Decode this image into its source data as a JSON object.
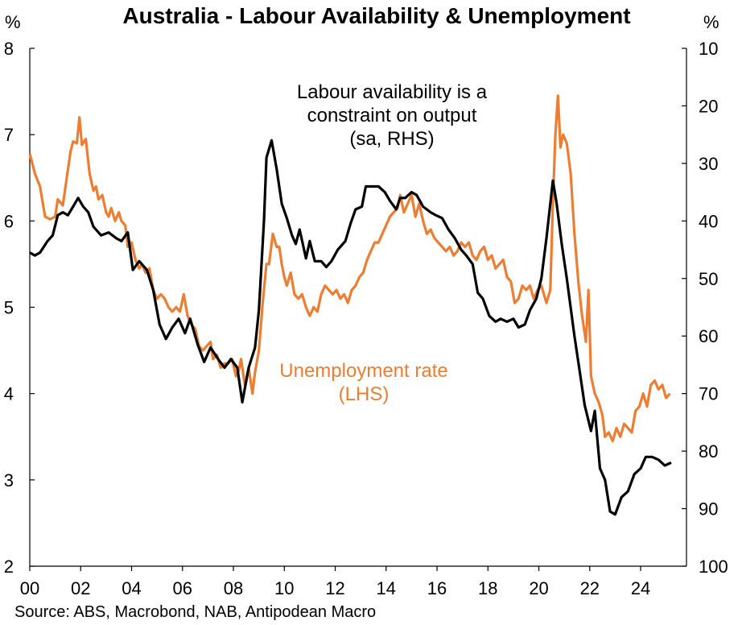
{
  "chart_data": {
    "type": "line",
    "title": "Australia - Labour Availability & Unemployment",
    "source": "Source: ABS, Macrobond, NAB, Antipodean Macro",
    "left_axis": {
      "unit": "%",
      "range": [
        2,
        8
      ],
      "ticks": [
        "2",
        "3",
        "4",
        "5",
        "6",
        "7",
        "8"
      ]
    },
    "right_axis": {
      "unit": "%",
      "range": [
        10,
        100
      ],
      "inverted": true,
      "ticks": [
        "10",
        "20",
        "30",
        "40",
        "50",
        "60",
        "70",
        "80",
        "90",
        "100"
      ]
    },
    "x_axis": {
      "range": [
        2000,
        2025.8
      ],
      "ticks": [
        "00",
        "02",
        "04",
        "06",
        "08",
        "10",
        "12",
        "14",
        "16",
        "18",
        "20",
        "22",
        "24"
      ]
    },
    "grid": false,
    "annotations": {
      "labour": [
        "Labour availability is a",
        "constraint on output",
        "(sa, RHS)"
      ],
      "unemployment": [
        "Unemployment rate",
        "(LHS)"
      ]
    },
    "colors": {
      "labour": "#000000",
      "unemployment": "#ED7D31"
    },
    "series": [
      {
        "axis": "left",
        "points": [
          [
            2000.0,
            6.78
          ],
          [
            2000.2,
            6.55
          ],
          [
            2000.4,
            6.4
          ],
          [
            2000.6,
            6.05
          ],
          [
            2000.8,
            6.02
          ],
          [
            2001.0,
            6.05
          ],
          [
            2001.1,
            6.25
          ],
          [
            2001.3,
            6.18
          ],
          [
            2001.45,
            6.5
          ],
          [
            2001.6,
            6.8
          ],
          [
            2001.7,
            6.92
          ],
          [
            2001.85,
            6.9
          ],
          [
            2001.95,
            7.2
          ],
          [
            2002.05,
            6.88
          ],
          [
            2002.2,
            6.95
          ],
          [
            2002.35,
            6.55
          ],
          [
            2002.5,
            6.35
          ],
          [
            2002.6,
            6.4
          ],
          [
            2002.7,
            6.25
          ],
          [
            2002.85,
            6.3
          ],
          [
            2003.0,
            6.1
          ],
          [
            2003.1,
            6.05
          ],
          [
            2003.2,
            6.15
          ],
          [
            2003.35,
            6.0
          ],
          [
            2003.5,
            6.1
          ],
          [
            2003.6,
            6.0
          ],
          [
            2003.75,
            5.95
          ],
          [
            2003.85,
            5.7
          ],
          [
            2004.0,
            5.75
          ],
          [
            2004.15,
            5.55
          ],
          [
            2004.3,
            5.45
          ],
          [
            2004.4,
            5.5
          ],
          [
            2004.55,
            5.4
          ],
          [
            2004.7,
            5.45
          ],
          [
            2004.85,
            5.2
          ],
          [
            2005.0,
            5.1
          ],
          [
            2005.15,
            5.15
          ],
          [
            2005.3,
            5.1
          ],
          [
            2005.45,
            5.0
          ],
          [
            2005.6,
            4.95
          ],
          [
            2005.75,
            5.0
          ],
          [
            2005.9,
            4.95
          ],
          [
            2006.05,
            5.15
          ],
          [
            2006.2,
            4.9
          ],
          [
            2006.35,
            4.8
          ],
          [
            2006.5,
            4.75
          ],
          [
            2006.65,
            4.55
          ],
          [
            2006.8,
            4.5
          ],
          [
            2006.95,
            4.55
          ],
          [
            2007.1,
            4.6
          ],
          [
            2007.2,
            4.4
          ],
          [
            2007.35,
            4.45
          ],
          [
            2007.5,
            4.3
          ],
          [
            2007.65,
            4.35
          ],
          [
            2007.8,
            4.35
          ],
          [
            2007.95,
            4.4
          ],
          [
            2008.1,
            4.2
          ],
          [
            2008.2,
            4.25
          ],
          [
            2008.3,
            4.4
          ],
          [
            2008.45,
            4.1
          ],
          [
            2008.6,
            4.3
          ],
          [
            2008.75,
            4.0
          ],
          [
            2008.85,
            4.25
          ],
          [
            2009.0,
            4.5
          ],
          [
            2009.15,
            5.05
          ],
          [
            2009.3,
            5.5
          ],
          [
            2009.4,
            5.5
          ],
          [
            2009.55,
            5.85
          ],
          [
            2009.7,
            5.7
          ],
          [
            2009.8,
            5.7
          ],
          [
            2009.9,
            5.5
          ],
          [
            2010.0,
            5.35
          ],
          [
            2010.1,
            5.25
          ],
          [
            2010.25,
            5.4
          ],
          [
            2010.4,
            5.15
          ],
          [
            2010.55,
            5.1
          ],
          [
            2010.7,
            5.15
          ],
          [
            2010.85,
            5.0
          ],
          [
            2011.0,
            4.9
          ],
          [
            2011.15,
            5.0
          ],
          [
            2011.3,
            4.95
          ],
          [
            2011.45,
            5.15
          ],
          [
            2011.6,
            5.25
          ],
          [
            2011.75,
            5.2
          ],
          [
            2011.9,
            5.15
          ],
          [
            2012.05,
            5.2
          ],
          [
            2012.2,
            5.1
          ],
          [
            2012.35,
            5.15
          ],
          [
            2012.5,
            5.05
          ],
          [
            2012.65,
            5.2
          ],
          [
            2012.8,
            5.25
          ],
          [
            2012.95,
            5.35
          ],
          [
            2013.1,
            5.4
          ],
          [
            2013.25,
            5.55
          ],
          [
            2013.4,
            5.65
          ],
          [
            2013.55,
            5.75
          ],
          [
            2013.7,
            5.75
          ],
          [
            2013.85,
            5.85
          ],
          [
            2014.0,
            5.95
          ],
          [
            2014.15,
            6.05
          ],
          [
            2014.3,
            6.1
          ],
          [
            2014.45,
            6.15
          ],
          [
            2014.55,
            6.3
          ],
          [
            2014.7,
            6.1
          ],
          [
            2014.85,
            6.2
          ],
          [
            2015.0,
            6.3
          ],
          [
            2015.15,
            6.05
          ],
          [
            2015.3,
            6.2
          ],
          [
            2015.45,
            6.0
          ],
          [
            2015.6,
            5.85
          ],
          [
            2015.75,
            5.9
          ],
          [
            2015.9,
            5.8
          ],
          [
            2016.05,
            5.75
          ],
          [
            2016.2,
            5.7
          ],
          [
            2016.35,
            5.65
          ],
          [
            2016.5,
            5.7
          ],
          [
            2016.65,
            5.6
          ],
          [
            2016.8,
            5.65
          ],
          [
            2016.95,
            5.75
          ],
          [
            2017.1,
            5.7
          ],
          [
            2017.25,
            5.75
          ],
          [
            2017.4,
            5.6
          ],
          [
            2017.55,
            5.55
          ],
          [
            2017.7,
            5.65
          ],
          [
            2017.85,
            5.7
          ],
          [
            2018.0,
            5.55
          ],
          [
            2018.15,
            5.6
          ],
          [
            2018.3,
            5.45
          ],
          [
            2018.45,
            5.5
          ],
          [
            2018.6,
            5.55
          ],
          [
            2018.75,
            5.35
          ],
          [
            2018.9,
            5.3
          ],
          [
            2019.05,
            5.05
          ],
          [
            2019.2,
            5.1
          ],
          [
            2019.35,
            5.25
          ],
          [
            2019.5,
            5.2
          ],
          [
            2019.65,
            5.25
          ],
          [
            2019.8,
            5.1
          ],
          [
            2019.95,
            5.2
          ],
          [
            2020.1,
            5.25
          ],
          [
            2020.3,
            5.05
          ],
          [
            2020.45,
            5.2
          ],
          [
            2020.55,
            6.2
          ],
          [
            2020.65,
            7.0
          ],
          [
            2020.75,
            7.45
          ],
          [
            2020.85,
            6.85
          ],
          [
            2020.95,
            7.0
          ],
          [
            2021.1,
            6.9
          ],
          [
            2021.25,
            6.55
          ],
          [
            2021.4,
            5.85
          ],
          [
            2021.55,
            5.3
          ],
          [
            2021.7,
            4.9
          ],
          [
            2021.85,
            4.6
          ],
          [
            2021.95,
            5.2
          ],
          [
            2022.05,
            4.2
          ],
          [
            2022.2,
            4.0
          ],
          [
            2022.35,
            3.9
          ],
          [
            2022.5,
            3.75
          ],
          [
            2022.6,
            3.5
          ],
          [
            2022.75,
            3.55
          ],
          [
            2022.9,
            3.45
          ],
          [
            2023.05,
            3.6
          ],
          [
            2023.2,
            3.5
          ],
          [
            2023.35,
            3.65
          ],
          [
            2023.5,
            3.6
          ],
          [
            2023.65,
            3.55
          ],
          [
            2023.8,
            3.8
          ],
          [
            2023.95,
            3.85
          ],
          [
            2024.1,
            4.0
          ],
          [
            2024.25,
            3.85
          ],
          [
            2024.4,
            4.1
          ],
          [
            2024.55,
            4.15
          ],
          [
            2024.7,
            4.05
          ],
          [
            2024.85,
            4.1
          ],
          [
            2025.0,
            3.95
          ],
          [
            2025.15,
            4.0
          ]
        ]
      },
      {
        "axis": "right",
        "points": [
          [
            2000.0,
            45.5
          ],
          [
            2000.2,
            46.0
          ],
          [
            2000.4,
            45.5
          ],
          [
            2000.7,
            43.5
          ],
          [
            2000.9,
            42.5
          ],
          [
            2001.1,
            39.0
          ],
          [
            2001.3,
            38.5
          ],
          [
            2001.5,
            39.0
          ],
          [
            2001.7,
            37.5
          ],
          [
            2001.9,
            36.0
          ],
          [
            2002.1,
            37.5
          ],
          [
            2002.3,
            38.5
          ],
          [
            2002.5,
            41.0
          ],
          [
            2002.8,
            42.5
          ],
          [
            2003.1,
            42.0
          ],
          [
            2003.4,
            43.0
          ],
          [
            2003.6,
            43.5
          ],
          [
            2003.85,
            42.0
          ],
          [
            2004.05,
            48.5
          ],
          [
            2004.3,
            47.0
          ],
          [
            2004.6,
            48.5
          ],
          [
            2004.85,
            52.0
          ],
          [
            2005.1,
            58.0
          ],
          [
            2005.35,
            60.5
          ],
          [
            2005.6,
            58.5
          ],
          [
            2005.85,
            57.0
          ],
          [
            2006.1,
            59.5
          ],
          [
            2006.3,
            57.0
          ],
          [
            2006.6,
            61.5
          ],
          [
            2006.85,
            64.5
          ],
          [
            2007.1,
            62.0
          ],
          [
            2007.4,
            64.0
          ],
          [
            2007.65,
            65.5
          ],
          [
            2007.9,
            64.0
          ],
          [
            2008.15,
            65.5
          ],
          [
            2008.35,
            71.5
          ],
          [
            2008.6,
            65.5
          ],
          [
            2008.85,
            62.0
          ],
          [
            2009.0,
            55.5
          ],
          [
            2009.2,
            40.0
          ],
          [
            2009.3,
            29.0
          ],
          [
            2009.5,
            26.0
          ],
          [
            2009.7,
            31.0
          ],
          [
            2009.9,
            37.0
          ],
          [
            2010.1,
            39.5
          ],
          [
            2010.3,
            42.5
          ],
          [
            2010.45,
            44.0
          ],
          [
            2010.6,
            41.5
          ],
          [
            2010.85,
            46.5
          ],
          [
            2011.0,
            43.5
          ],
          [
            2011.2,
            47.0
          ],
          [
            2011.45,
            47.0
          ],
          [
            2011.65,
            48.0
          ],
          [
            2011.85,
            47.0
          ],
          [
            2012.1,
            45.0
          ],
          [
            2012.4,
            43.5
          ],
          [
            2012.6,
            40.5
          ],
          [
            2012.8,
            38.0
          ],
          [
            2013.05,
            37.5
          ],
          [
            2013.2,
            34.0
          ],
          [
            2013.45,
            34.0
          ],
          [
            2013.7,
            34.0
          ],
          [
            2013.95,
            35.0
          ],
          [
            2014.15,
            36.5
          ],
          [
            2014.4,
            38.0
          ],
          [
            2014.55,
            36.0
          ],
          [
            2014.75,
            36.0
          ],
          [
            2015.0,
            35.0
          ],
          [
            2015.2,
            35.5
          ],
          [
            2015.45,
            37.5
          ],
          [
            2015.75,
            38.5
          ],
          [
            2015.95,
            39.0
          ],
          [
            2016.2,
            39.5
          ],
          [
            2016.45,
            41.5
          ],
          [
            2016.7,
            43.0
          ],
          [
            2016.95,
            45.0
          ],
          [
            2017.15,
            46.0
          ],
          [
            2017.4,
            47.5
          ],
          [
            2017.6,
            52.5
          ],
          [
            2017.8,
            53.5
          ],
          [
            2018.05,
            56.5
          ],
          [
            2018.3,
            57.5
          ],
          [
            2018.5,
            57.0
          ],
          [
            2018.75,
            57.5
          ],
          [
            2019.0,
            57.0
          ],
          [
            2019.2,
            58.5
          ],
          [
            2019.45,
            58.0
          ],
          [
            2019.65,
            55.5
          ],
          [
            2019.9,
            53.5
          ],
          [
            2020.1,
            50.0
          ],
          [
            2020.3,
            43.0
          ],
          [
            2020.45,
            37.0
          ],
          [
            2020.55,
            33.0
          ],
          [
            2020.7,
            37.0
          ],
          [
            2020.9,
            44.0
          ],
          [
            2021.1,
            50.0
          ],
          [
            2021.4,
            60.0
          ],
          [
            2021.6,
            66.0
          ],
          [
            2021.8,
            72.0
          ],
          [
            2022.05,
            76.5
          ],
          [
            2022.2,
            73.0
          ],
          [
            2022.4,
            83.0
          ],
          [
            2022.6,
            85.0
          ],
          [
            2022.8,
            90.5
          ],
          [
            2023.0,
            91.0
          ],
          [
            2023.25,
            88.0
          ],
          [
            2023.5,
            87.0
          ],
          [
            2023.75,
            84.0
          ],
          [
            2024.0,
            83.0
          ],
          [
            2024.2,
            81.0
          ],
          [
            2024.45,
            81.0
          ],
          [
            2024.7,
            81.5
          ],
          [
            2024.95,
            82.5
          ],
          [
            2025.2,
            82.0
          ]
        ]
      }
    ]
  }
}
